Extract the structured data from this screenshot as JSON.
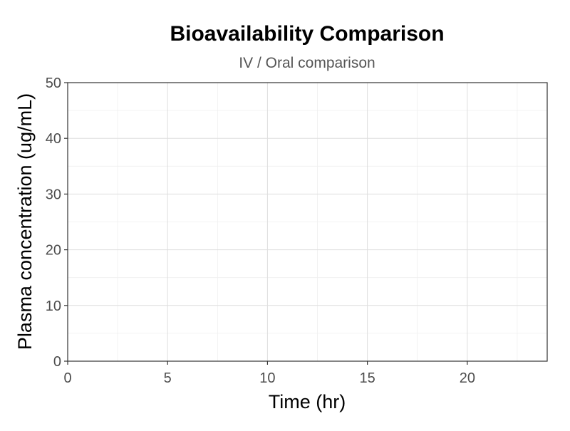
{
  "chart_data": {
    "type": "line",
    "title": "Bioavailability Comparison",
    "subtitle": "IV / Oral comparison",
    "xlabel": "Time (hr)",
    "ylabel": "Plasma concentration (ug/mL)",
    "xlim": [
      0,
      24
    ],
    "ylim": [
      0,
      50
    ],
    "x_ticks": [
      0,
      5,
      10,
      15,
      20
    ],
    "x_minor_ticks": [
      2.5,
      7.5,
      12.5,
      17.5,
      22.5
    ],
    "y_ticks": [
      0,
      10,
      20,
      30,
      40,
      50
    ],
    "y_minor_ticks": [
      5,
      15,
      25,
      35,
      45
    ],
    "grid": true,
    "legend": "none",
    "series": [],
    "colors": {
      "grid_major": "#dedede",
      "grid_minor": "#efefef",
      "panel_border": "#333333",
      "tick_label": "#4d4d4d"
    }
  }
}
